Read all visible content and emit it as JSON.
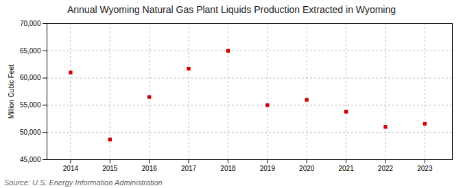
{
  "chart_data": {
    "type": "scatter",
    "title": "Annual Wyoming Natural Gas Plant Liquids Production Extracted in Wyoming",
    "ylabel": "Million Cubic Feet",
    "source": "Source: U.S. Energy Information Administration",
    "x": [
      2014,
      2015,
      2016,
      2017,
      2018,
      2019,
      2020,
      2021,
      2022,
      2023
    ],
    "values": [
      61000,
      48700,
      56500,
      61700,
      65000,
      55000,
      56000,
      53800,
      51000,
      51600
    ],
    "color": "#cc0000",
    "marker": "square",
    "xlim": [
      2013.4,
      2023.7
    ],
    "xticks": [
      2014,
      2015,
      2016,
      2017,
      2018,
      2019,
      2020,
      2021,
      2022,
      2023
    ],
    "ylim": [
      45000,
      70000
    ],
    "yticks": [
      {
        "value": 45000,
        "label": "45,000"
      },
      {
        "value": 50000,
        "label": "50,000"
      },
      {
        "value": 55000,
        "label": "55,000"
      },
      {
        "value": 60000,
        "label": "60,000"
      },
      {
        "value": 65000,
        "label": "65,000"
      },
      {
        "value": 70000,
        "label": "70,000"
      }
    ],
    "grid": true
  }
}
